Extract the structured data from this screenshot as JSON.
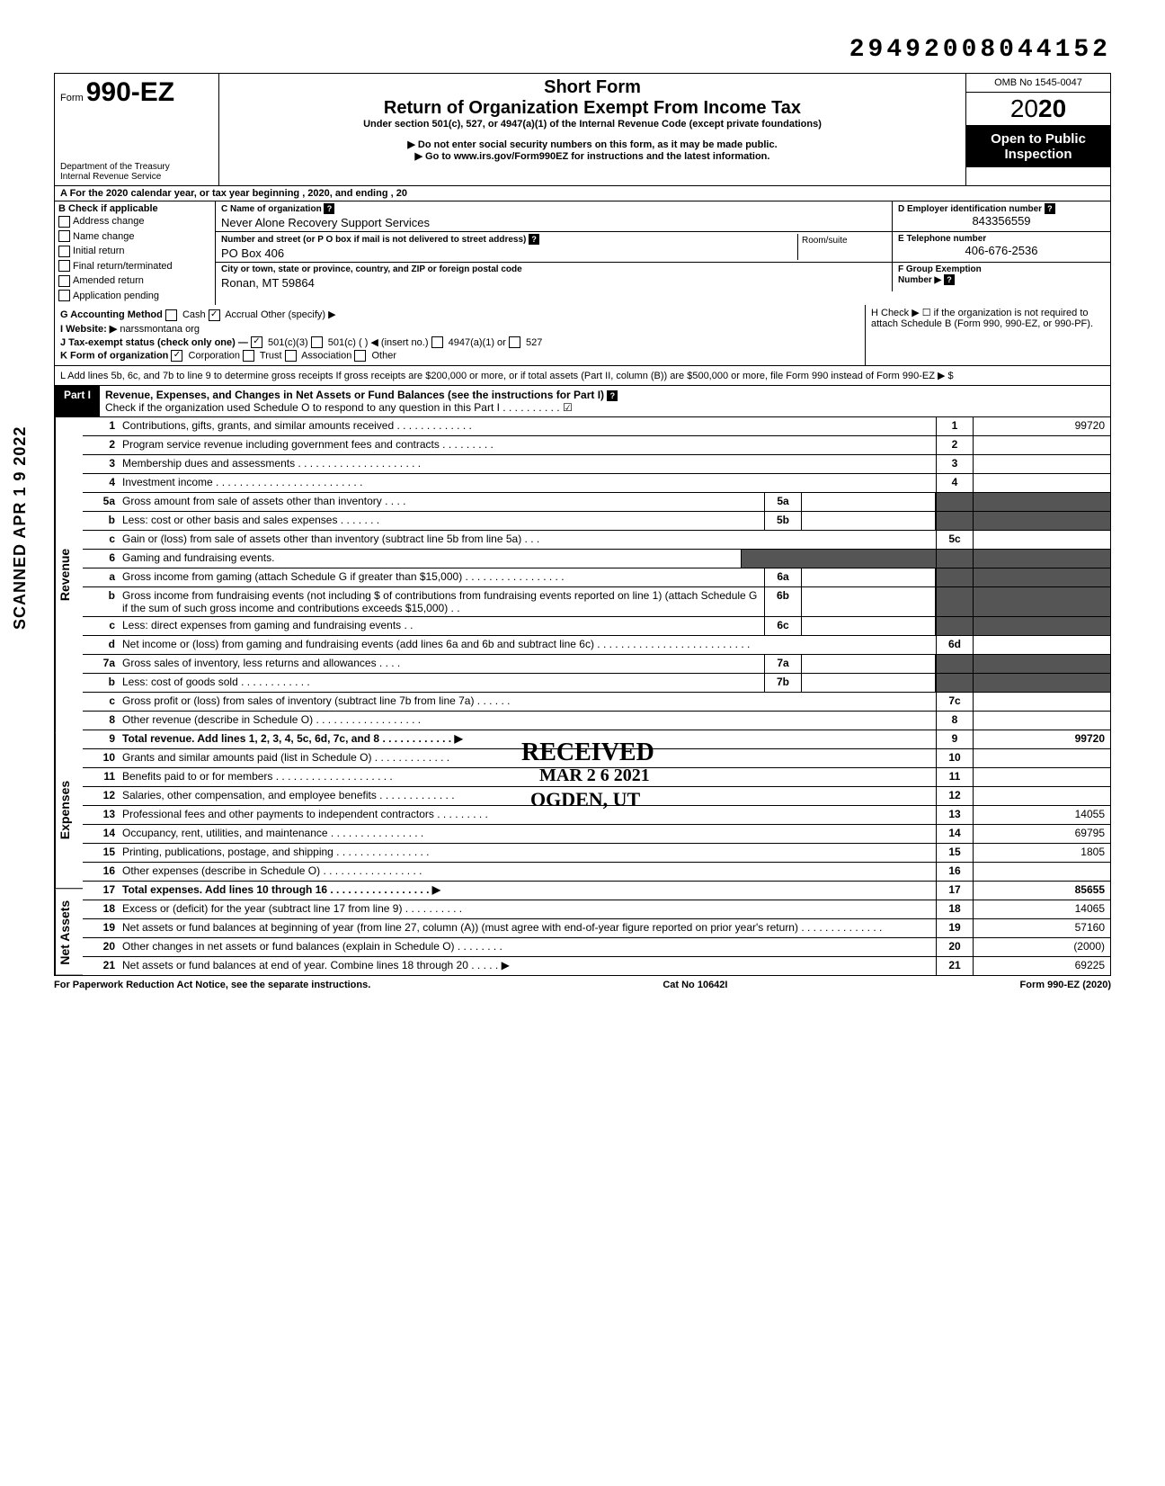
{
  "stamp_top": "29492008044152",
  "scanned_stamp": "SCANNED APR 1 9 2022",
  "header": {
    "form_prefix": "Form",
    "form_number": "990-EZ",
    "dept": "Department of the Treasury",
    "irs": "Internal Revenue Service",
    "short": "Short Form",
    "title": "Return of Organization Exempt From Income Tax",
    "sub": "Under section 501(c), 527, or 4947(a)(1) of the Internal Revenue Code (except private foundations)",
    "note1": "▶ Do not enter social security numbers on this form, as it may be made public.",
    "note2": "▶ Go to www.irs.gov/Form990EZ for instructions and the latest information.",
    "omb": "OMB No 1545-0047",
    "year_outline": "20",
    "year_bold": "20",
    "open": "Open to Public Inspection"
  },
  "row_a": "A  For the 2020 calendar year, or tax year beginning                                              , 2020, and ending                                          , 20",
  "section_b": {
    "label": "B  Check if applicable",
    "opts": [
      "Address change",
      "Name change",
      "Initial return",
      "Final return/terminated",
      "Amended return",
      "Application pending"
    ]
  },
  "section_c": {
    "name_label": "C  Name of organization",
    "name": "Never Alone Recovery Support Services",
    "addr_label": "Number and street (or P O  box if mail is not delivered to street address)",
    "room_label": "Room/suite",
    "addr": "PO Box 406",
    "city_label": "City or town, state or province, country, and ZIP or foreign postal code",
    "city": "Ronan, MT 59864"
  },
  "section_d": {
    "label": "D Employer identification number",
    "value": "843356559"
  },
  "section_e": {
    "label": "E Telephone number",
    "value": "406-676-2536"
  },
  "section_f": {
    "label": "F Group Exemption",
    "label2": "Number ▶"
  },
  "gijk": {
    "g": "G  Accounting Method",
    "g_cash": "Cash",
    "g_accrual": "Accrual",
    "g_other": "Other (specify) ▶",
    "i": "I  Website: ▶",
    "i_val": "narssmontana org",
    "j": "J  Tax-exempt status (check only one) —",
    "j1": "501(c)(3)",
    "j2": "501(c) (          ) ◀ (insert no.)",
    "j3": "4947(a)(1) or",
    "j4": "527",
    "k": "K  Form of organization",
    "k1": "Corporation",
    "k2": "Trust",
    "k3": "Association",
    "k4": "Other",
    "h": "H  Check ▶ ☐ if the organization is not required to attach Schedule B (Form 990, 990-EZ, or 990-PF)."
  },
  "line_l": "L  Add lines 5b, 6c, and 7b to line 9 to determine gross receipts  If gross receipts are $200,000 or more, or if total assets (Part II, column (B)) are $500,000 or more, file Form 990 instead of Form 990-EZ                                                                                             ▶  $",
  "part1": {
    "tab": "Part I",
    "title": "Revenue, Expenses, and Changes in Net Assets or Fund Balances (see the instructions for Part I)",
    "check": "Check if the organization used Schedule O to respond to any question in this Part I . . . . . . . . . . ☑"
  },
  "sections": {
    "revenue": "Revenue",
    "expenses": "Expenses",
    "netassets": "Net Assets"
  },
  "rows": [
    {
      "n": "1",
      "d": "Contributions, gifts, grants, and similar amounts received . . . . . . . . . . . . .",
      "box": "1",
      "v": "99720"
    },
    {
      "n": "2",
      "d": "Program service revenue including government fees and contracts  . . . . . . . . .",
      "box": "2",
      "v": ""
    },
    {
      "n": "3",
      "d": "Membership dues and assessments . . . . . . . . . . . . . . . . . . . . .",
      "box": "3",
      "v": ""
    },
    {
      "n": "4",
      "d": "Investment income  . . . . . . . . . . . . . . . . . . . . . . . . .",
      "box": "4",
      "v": ""
    },
    {
      "n": "5a",
      "d": "Gross amount from sale of assets other than inventory  . . . .",
      "mid": "5a",
      "midv": ""
    },
    {
      "n": "b",
      "d": "Less: cost or other basis and sales expenses . . . . . . .",
      "mid": "5b",
      "midv": ""
    },
    {
      "n": "c",
      "d": "Gain or (loss) from sale of assets other than inventory (subtract line 5b from line 5a) . . .",
      "box": "5c",
      "v": ""
    },
    {
      "n": "6",
      "d": "Gaming and fundraising events.",
      "shaded": true
    },
    {
      "n": "a",
      "d": "Gross income from gaming (attach Schedule G if greater than $15,000) . . . . . . . . . . . . . . . . .",
      "mid": "6a",
      "midv": ""
    },
    {
      "n": "b",
      "d": "Gross income from fundraising events (not including  $                      of contributions from fundraising events reported on line 1) (attach Schedule G if the sum of such gross income and contributions exceeds $15,000) . .",
      "mid": "6b",
      "midv": ""
    },
    {
      "n": "c",
      "d": "Less: direct expenses from gaming and fundraising events  . .",
      "mid": "6c",
      "midv": ""
    },
    {
      "n": "d",
      "d": "Net income or (loss) from gaming and fundraising events (add lines 6a and 6b and subtract line 6c)  . . . . . . . . . . . . . . . . . . . . . . . . . .",
      "box": "6d",
      "v": ""
    },
    {
      "n": "7a",
      "d": "Gross sales of inventory, less returns and allowances . . . .",
      "mid": "7a",
      "midv": ""
    },
    {
      "n": "b",
      "d": "Less: cost of goods sold  . . . . . . . . . . . .",
      "mid": "7b",
      "midv": ""
    },
    {
      "n": "c",
      "d": "Gross profit or (loss) from sales of inventory (subtract line 7b from line 7a) . . . . . .",
      "box": "7c",
      "v": ""
    },
    {
      "n": "8",
      "d": "Other revenue (describe in Schedule O) . . . . . . . . . . . . . . . . . .",
      "box": "8",
      "v": ""
    },
    {
      "n": "9",
      "d": "Total revenue. Add lines 1, 2, 3, 4, 5c, 6d, 7c, and 8  . . . . . . . . . . . . ▶",
      "box": "9",
      "v": "99720",
      "bold": true
    },
    {
      "n": "10",
      "d": "Grants and similar amounts paid (list in Schedule O)  . . . . . . . . . . . . .",
      "box": "10",
      "v": ""
    },
    {
      "n": "11",
      "d": "Benefits paid to or for members  . . . . . . . . . . . . . . . . . . . .",
      "box": "11",
      "v": ""
    },
    {
      "n": "12",
      "d": "Salaries, other compensation, and employee benefits . . . . . . . . . . . . .",
      "box": "12",
      "v": ""
    },
    {
      "n": "13",
      "d": "Professional fees and other payments to independent contractors . . . . . . . . .",
      "box": "13",
      "v": "14055"
    },
    {
      "n": "14",
      "d": "Occupancy, rent, utilities, and maintenance  . . . . . . . . . . . . . . . .",
      "box": "14",
      "v": "69795"
    },
    {
      "n": "15",
      "d": "Printing, publications, postage, and shipping . . . . . . . . . . . . . . . .",
      "box": "15",
      "v": "1805"
    },
    {
      "n": "16",
      "d": "Other expenses (describe in Schedule O) . . . . . . . . . . . . . . . . .",
      "box": "16",
      "v": ""
    },
    {
      "n": "17",
      "d": "Total expenses. Add lines 10 through 16 . . . . . . . . . . . . . . . . . ▶",
      "box": "17",
      "v": "85655",
      "bold": true
    },
    {
      "n": "18",
      "d": "Excess or (deficit) for the year (subtract line 17 from line 9)  . . . . . . . . . .",
      "box": "18",
      "v": "14065"
    },
    {
      "n": "19",
      "d": "Net assets or fund balances at beginning of year (from line 27, column (A)) (must agree with end-of-year figure reported on prior year's return)  . . . . . . . . . . . . . .",
      "box": "19",
      "v": "57160"
    },
    {
      "n": "20",
      "d": "Other changes in net assets or fund balances (explain in Schedule O) . . . . . . . .",
      "box": "20",
      "v": "(2000)"
    },
    {
      "n": "21",
      "d": "Net assets or fund balances at end of year. Combine lines 18 through 20  . . . . . ▶",
      "box": "21",
      "v": "69225"
    }
  ],
  "received": {
    "l1": "RECEIVED",
    "l2": "MAR 2 6 2021",
    "l3": "OGDEN, UT"
  },
  "footer": {
    "left": "For Paperwork Reduction Act Notice, see the separate instructions.",
    "mid": "Cat No 10642I",
    "right": "Form 990-EZ (2020)"
  }
}
